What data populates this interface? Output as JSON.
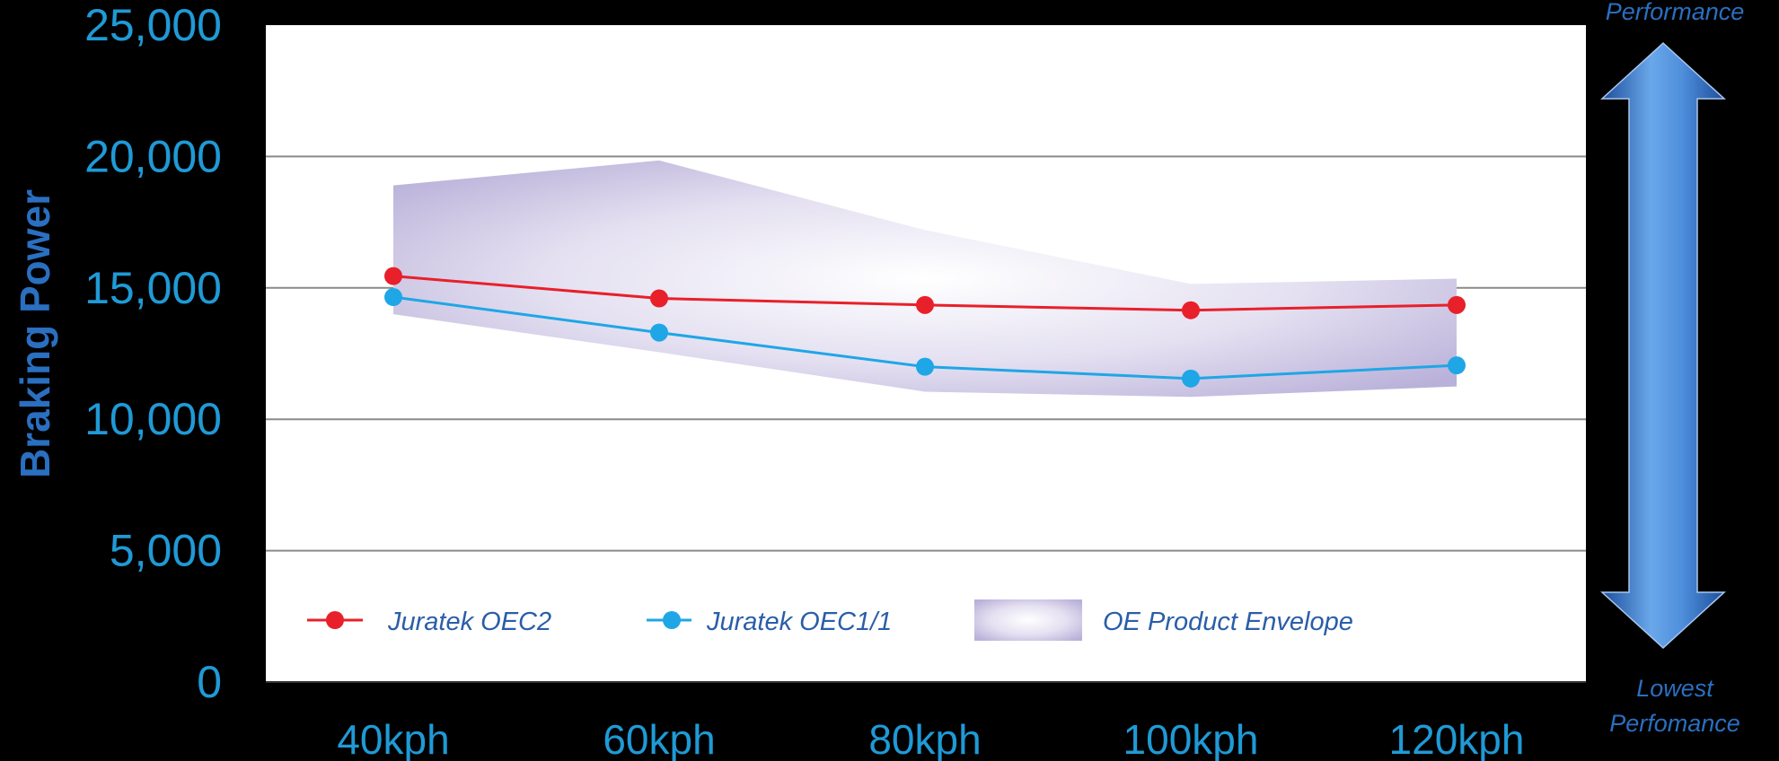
{
  "chart_data": {
    "type": "line",
    "ylabel": "Braking Power",
    "xlabel": "",
    "title": "",
    "categories": [
      "40kph",
      "60kph",
      "80kph",
      "100kph",
      "120kph"
    ],
    "ylim": [
      0,
      25000
    ],
    "yticks": [
      {
        "value": 0,
        "label": "0"
      },
      {
        "value": 5000,
        "label": "5,000"
      },
      {
        "value": 10000,
        "label": "10,000"
      },
      {
        "value": 15000,
        "label": "15,000"
      },
      {
        "value": 20000,
        "label": "20,000"
      },
      {
        "value": 25000,
        "label": "25,000"
      }
    ],
    "grid": true,
    "series": [
      {
        "name": "Juratek OEC2",
        "color": "#e8202a",
        "values": [
          15450,
          14600,
          14350,
          14150,
          14350
        ]
      },
      {
        "name": "Juratek OEC1/1",
        "color": "#1fa6e6",
        "values": [
          14650,
          13300,
          12000,
          11550,
          12050
        ]
      }
    ],
    "envelope": {
      "name": "OE Product Envelope",
      "color": "#b9b1d9",
      "upper": [
        18900,
        19850,
        17200,
        15150,
        15350
      ],
      "lower": [
        14000,
        12550,
        11050,
        10850,
        11250
      ]
    },
    "legend_position": "bottom-inside"
  },
  "scale_arrow": {
    "top_label": "Performance",
    "bottom_label_line1": "Lowest",
    "bottom_label_line2": "Perfomance",
    "color": "#3d7fcf"
  }
}
